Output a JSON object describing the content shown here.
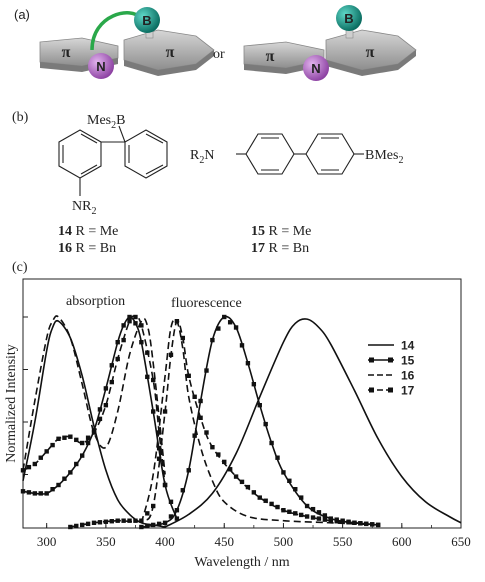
{
  "panel_a": {
    "label": "(a)",
    "or_text": "or",
    "pi_left_1": "π",
    "pi_right_1": "π",
    "pi_left_2": "π",
    "pi_right_2": "π",
    "boron_1": "B",
    "nitrogen_1": "N",
    "boron_2": "B",
    "nitrogen_2": "N",
    "colors": {
      "boron": "#0a8a7a",
      "nitrogen": "#a763b8",
      "ring": "#b8b8b8",
      "bridge": "#2aa84a",
      "atom_text": "#c8781e"
    }
  },
  "panel_b": {
    "label": "(b)",
    "left_top_sub": "Mes",
    "left_top_sub_idx": "2",
    "left_top_sub_b": "B",
    "left_bottom_sub": "NR",
    "left_bottom_sub_idx": "2",
    "right_left_sub": "R",
    "right_left_sub_idx": "2",
    "right_left_sub_n": "N",
    "right_right_sub": "BMes",
    "right_right_sub_idx": "2",
    "compounds": [
      {
        "num": "14",
        "text": " R = Me"
      },
      {
        "num": "16",
        "text": " R = Bn"
      },
      {
        "num": "15",
        "text": " R = Me"
      },
      {
        "num": "17",
        "text": " R = Bn"
      }
    ]
  },
  "panel_c": {
    "label": "(c)",
    "annotation_absorption": "absorption",
    "annotation_fluorescence": "fluorescence"
  },
  "chart_data": {
    "type": "line",
    "xlabel": "Wavelength / nm",
    "ylabel": "Normalized Intensity",
    "xlim": [
      280,
      650
    ],
    "ylim": [
      0,
      1.0
    ],
    "x_ticks": [
      "300",
      "350",
      "400",
      "450",
      "500",
      "550",
      "600",
      "650"
    ],
    "legend_position": "right",
    "series": [
      {
        "name": "14",
        "style": "solid",
        "kind": "absorption",
        "x": [
          280,
          290,
          300,
          305,
          310,
          320,
          330,
          340,
          350,
          360,
          370,
          380,
          390,
          400
        ],
        "y": [
          0.22,
          0.5,
          0.84,
          0.95,
          0.98,
          0.9,
          0.72,
          0.48,
          0.27,
          0.13,
          0.06,
          0.02,
          0.01,
          0.0
        ]
      },
      {
        "name": "14",
        "style": "solid",
        "kind": "fluorescence",
        "x": [
          400,
          420,
          440,
          460,
          480,
          500,
          510,
          520,
          530,
          540,
          560,
          580,
          600,
          620,
          640,
          650
        ],
        "y": [
          0.0,
          0.06,
          0.16,
          0.35,
          0.62,
          0.88,
          0.97,
          0.99,
          0.95,
          0.87,
          0.65,
          0.42,
          0.24,
          0.12,
          0.05,
          0.02
        ]
      },
      {
        "name": "15",
        "style": "solid-square",
        "kind": "absorption",
        "x": [
          280,
          290,
          300,
          310,
          320,
          330,
          340,
          350,
          360,
          365,
          370,
          375,
          380,
          390,
          400,
          410
        ],
        "y": [
          0.17,
          0.16,
          0.16,
          0.2,
          0.26,
          0.34,
          0.46,
          0.66,
          0.88,
          0.96,
          1.0,
          0.97,
          0.88,
          0.55,
          0.2,
          0.04
        ]
      },
      {
        "name": "15",
        "style": "solid-square",
        "kind": "fluorescence",
        "x": [
          380,
          400,
          410,
          420,
          430,
          440,
          450,
          460,
          470,
          480,
          490,
          500,
          520,
          540,
          560,
          580
        ],
        "y": [
          0.0,
          0.02,
          0.08,
          0.27,
          0.6,
          0.89,
          1.0,
          0.95,
          0.78,
          0.58,
          0.4,
          0.26,
          0.1,
          0.04,
          0.02,
          0.01
        ]
      },
      {
        "name": "16",
        "style": "dashed",
        "kind": "absorption",
        "x": [
          280,
          290,
          300,
          305,
          310,
          320,
          330,
          340,
          350,
          360,
          370,
          380,
          385,
          390,
          400
        ],
        "y": [
          0.27,
          0.6,
          0.9,
          0.98,
          1.0,
          0.9,
          0.68,
          0.45,
          0.38,
          0.55,
          0.82,
          0.98,
          0.96,
          0.78,
          0.25
        ]
      },
      {
        "name": "16",
        "style": "dashed",
        "kind": "fluorescence",
        "x": [
          380,
          390,
          400,
          405,
          410,
          415,
          420,
          430,
          440,
          450,
          470,
          500,
          540,
          580
        ],
        "y": [
          0.02,
          0.25,
          0.72,
          0.95,
          0.98,
          0.85,
          0.62,
          0.38,
          0.22,
          0.12,
          0.05,
          0.03,
          0.02,
          0.01
        ]
      },
      {
        "name": "17",
        "style": "dashed-square",
        "kind": "absorption",
        "x": [
          280,
          290,
          300,
          310,
          320,
          330,
          340,
          350,
          360,
          370,
          375,
          380,
          390,
          395,
          400
        ],
        "y": [
          0.27,
          0.3,
          0.36,
          0.42,
          0.43,
          0.4,
          0.45,
          0.58,
          0.8,
          0.98,
          1.0,
          0.96,
          0.7,
          0.45,
          0.2
        ]
      },
      {
        "name": "17",
        "style": "dashed-square",
        "kind": "fluorescence",
        "x": [
          320,
          340,
          360,
          380,
          390,
          400,
          405,
          410,
          415,
          420,
          430,
          440,
          460,
          480,
          500,
          520,
          540,
          560,
          580
        ],
        "y": [
          0.0,
          0.02,
          0.03,
          0.03,
          0.1,
          0.55,
          0.82,
          0.98,
          0.9,
          0.72,
          0.52,
          0.38,
          0.24,
          0.14,
          0.08,
          0.05,
          0.03,
          0.02,
          0.01
        ]
      }
    ],
    "legend": [
      {
        "name": "14",
        "style": "solid"
      },
      {
        "name": "15",
        "style": "solid-square"
      },
      {
        "name": "16",
        "style": "dashed"
      },
      {
        "name": "17",
        "style": "dashed-square"
      }
    ]
  }
}
